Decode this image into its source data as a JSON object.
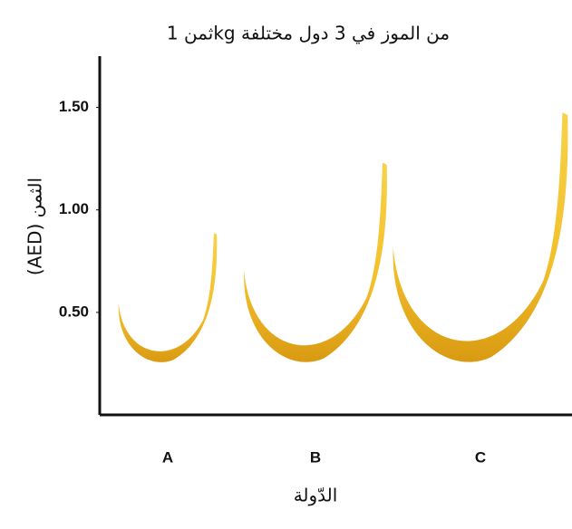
{
  "chart_data": {
    "type": "bar",
    "title": "ثمن 1kg من الموز في 3 دول مختلفة",
    "y_label": "(AED) الثمن",
    "x_label": "الدّولة",
    "categories": [
      "A",
      "B",
      "C"
    ],
    "values": [
      0.9,
      1.25,
      1.5
    ],
    "color": "#f2c12e",
    "ylim": [
      0,
      1.75
    ],
    "yticks": [
      {
        "value": 0.5,
        "label": "0.50"
      },
      {
        "value": 1,
        "label": "1.00"
      },
      {
        "value": 1.5,
        "label": "1.50"
      }
    ]
  }
}
